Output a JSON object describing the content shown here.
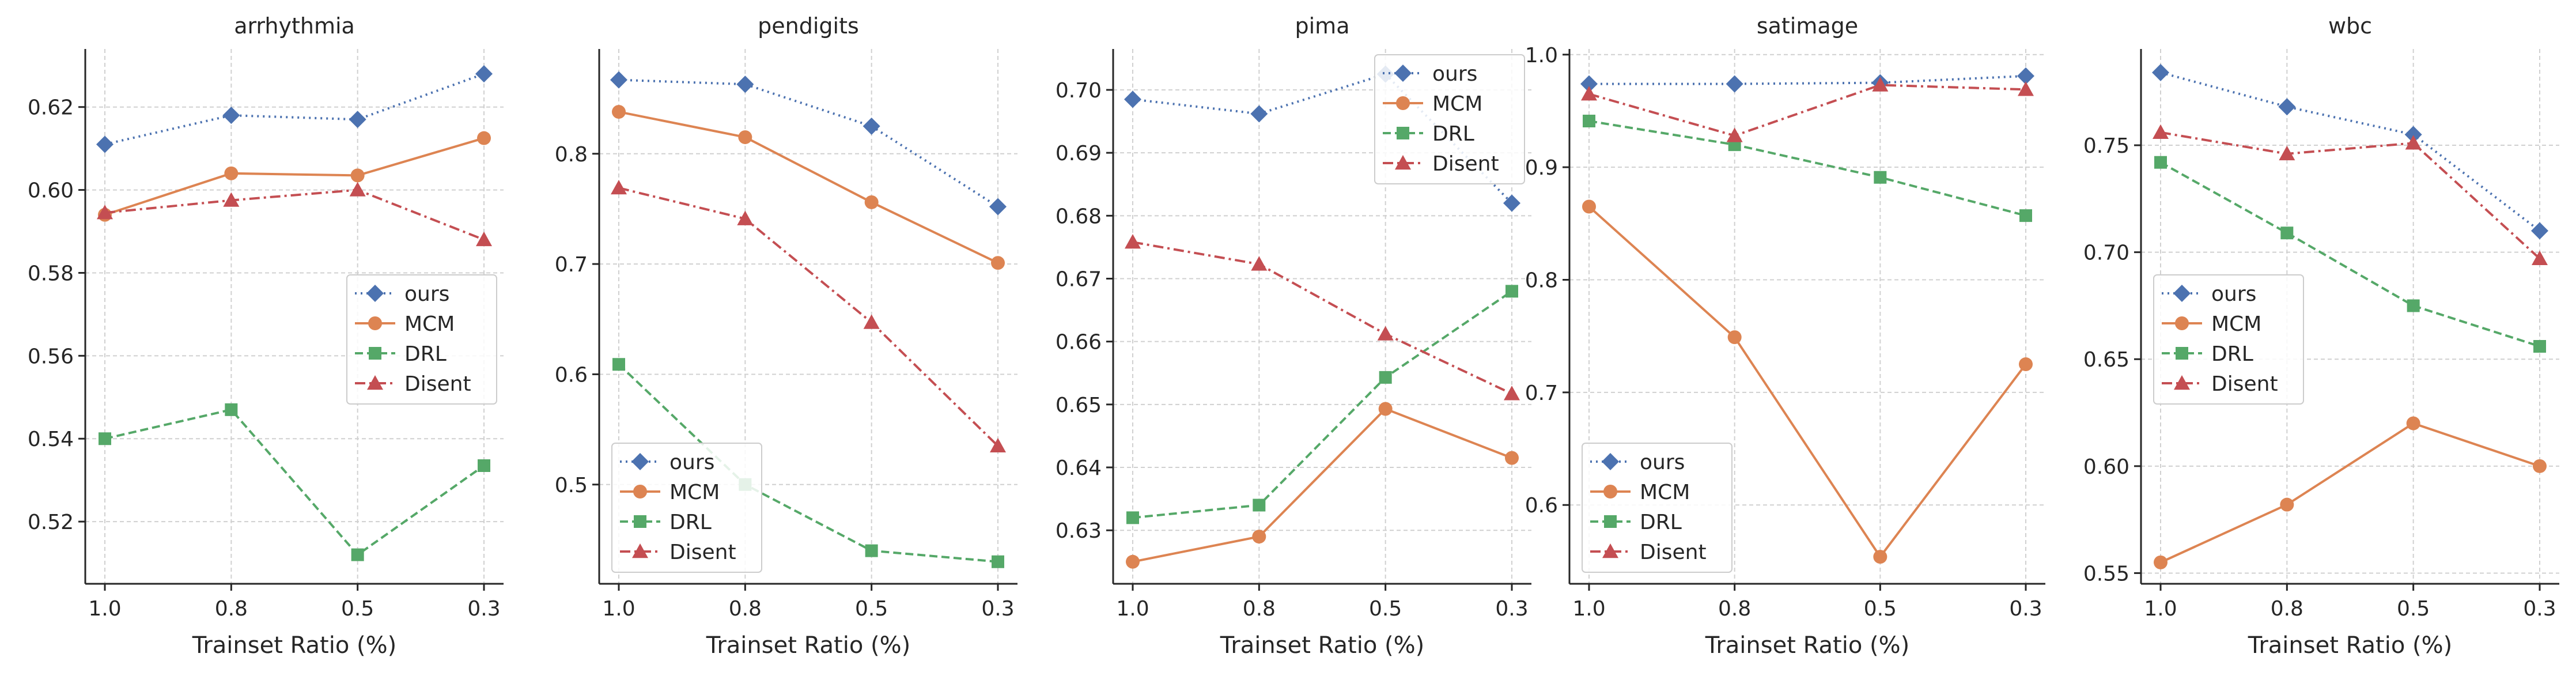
{
  "chart_data": [
    {
      "type": "line",
      "title": "arrhythmia",
      "xlabel": "Trainset Ratio (%)",
      "ylabel": "",
      "categories": [
        "1.0",
        "0.8",
        "0.5",
        "0.3"
      ],
      "ylim": [
        0.505,
        0.634
      ],
      "yticks": [
        0.52,
        0.54,
        0.56,
        0.58,
        0.6,
        0.62
      ],
      "ytick_labels": [
        "0.52",
        "0.54",
        "0.56",
        "0.58",
        "0.60",
        "0.62"
      ],
      "legend_position": "center-right",
      "series": [
        {
          "name": "ours",
          "values": [
            0.611,
            0.618,
            0.617,
            0.628
          ]
        },
        {
          "name": "MCM",
          "values": [
            0.594,
            0.604,
            0.6035,
            0.6125
          ]
        },
        {
          "name": "DRL",
          "values": [
            0.54,
            0.547,
            0.512,
            0.5335
          ]
        },
        {
          "name": "Disent",
          "values": [
            0.5945,
            0.5975,
            0.6,
            0.588
          ]
        }
      ]
    },
    {
      "type": "line",
      "title": "pendigits",
      "xlabel": "Trainset Ratio (%)",
      "ylabel": "",
      "categories": [
        "1.0",
        "0.8",
        "0.5",
        "0.3"
      ],
      "ylim": [
        0.41,
        0.895
      ],
      "yticks": [
        0.5,
        0.6,
        0.7,
        0.8
      ],
      "ytick_labels": [
        "0.5",
        "0.6",
        "0.7",
        "0.8"
      ],
      "legend_position": "bottom-left",
      "series": [
        {
          "name": "ours",
          "values": [
            0.867,
            0.863,
            0.825,
            0.752
          ]
        },
        {
          "name": "MCM",
          "values": [
            0.838,
            0.815,
            0.756,
            0.701
          ]
        },
        {
          "name": "DRL",
          "values": [
            0.609,
            0.5,
            0.44,
            0.43
          ]
        },
        {
          "name": "Disent",
          "values": [
            0.769,
            0.741,
            0.647,
            0.535
          ]
        }
      ]
    },
    {
      "type": "line",
      "title": "pima",
      "xlabel": "Trainset Ratio (%)",
      "ylabel": "",
      "categories": [
        "1.0",
        "0.8",
        "0.5",
        "0.3"
      ],
      "ylim": [
        0.6215,
        0.7065
      ],
      "yticks": [
        0.63,
        0.64,
        0.65,
        0.66,
        0.67,
        0.68,
        0.69,
        0.7
      ],
      "ytick_labels": [
        "0.63",
        "0.64",
        "0.65",
        "0.66",
        "0.67",
        "0.68",
        "0.69",
        "0.70"
      ],
      "legend_position": "top-right",
      "series": [
        {
          "name": "ours",
          "values": [
            0.6985,
            0.6962,
            0.7025,
            0.682
          ]
        },
        {
          "name": "MCM",
          "values": [
            0.625,
            0.629,
            0.6493,
            0.6415
          ]
        },
        {
          "name": "DRL",
          "values": [
            0.632,
            0.634,
            0.6543,
            0.668
          ]
        },
        {
          "name": "Disent",
          "values": [
            0.6758,
            0.6723,
            0.6612,
            0.6517
          ]
        }
      ]
    },
    {
      "type": "line",
      "title": "satimage",
      "xlabel": "Trainset Ratio (%)",
      "ylabel": "",
      "categories": [
        "1.0",
        "0.8",
        "0.5",
        "0.3"
      ],
      "ylim": [
        0.53,
        1.005
      ],
      "yticks": [
        0.6,
        0.7,
        0.8,
        0.9,
        1.0
      ],
      "ytick_labels": [
        "0.6",
        "0.7",
        "0.8",
        "0.9",
        "1.0"
      ],
      "legend_position": "bottom-left",
      "series": [
        {
          "name": "ours",
          "values": [
            0.974,
            0.974,
            0.975,
            0.981
          ]
        },
        {
          "name": "MCM",
          "values": [
            0.865,
            0.749,
            0.554,
            0.725
          ]
        },
        {
          "name": "DRL",
          "values": [
            0.941,
            0.92,
            0.891,
            0.857
          ]
        },
        {
          "name": "Disent",
          "values": [
            0.965,
            0.928,
            0.973,
            0.969
          ]
        }
      ]
    },
    {
      "type": "line",
      "title": "wbc",
      "xlabel": "Trainset Ratio (%)",
      "ylabel": "",
      "categories": [
        "1.0",
        "0.8",
        "0.5",
        "0.3"
      ],
      "ylim": [
        0.545,
        0.795
      ],
      "yticks": [
        0.55,
        0.6,
        0.65,
        0.7,
        0.75
      ],
      "ytick_labels": [
        "0.55",
        "0.60",
        "0.65",
        "0.70",
        "0.75"
      ],
      "legend_position": "center-left",
      "series": [
        {
          "name": "ours",
          "values": [
            0.784,
            0.768,
            0.755,
            0.71
          ]
        },
        {
          "name": "MCM",
          "values": [
            0.555,
            0.582,
            0.62,
            0.6
          ]
        },
        {
          "name": "DRL",
          "values": [
            0.742,
            0.709,
            0.675,
            0.656
          ]
        },
        {
          "name": "Disent",
          "values": [
            0.756,
            0.746,
            0.751,
            0.697
          ]
        }
      ]
    }
  ],
  "series_styles": [
    {
      "name": "ours",
      "color": "#4C72B0",
      "dash": "dotted",
      "marker": "diamond"
    },
    {
      "name": "MCM",
      "color": "#DD8452",
      "dash": "solid",
      "marker": "circle"
    },
    {
      "name": "DRL",
      "color": "#55A868",
      "dash": "dashed",
      "marker": "square"
    },
    {
      "name": "Disent",
      "color": "#C44E52",
      "dash": "dashdot",
      "marker": "triangle"
    }
  ]
}
